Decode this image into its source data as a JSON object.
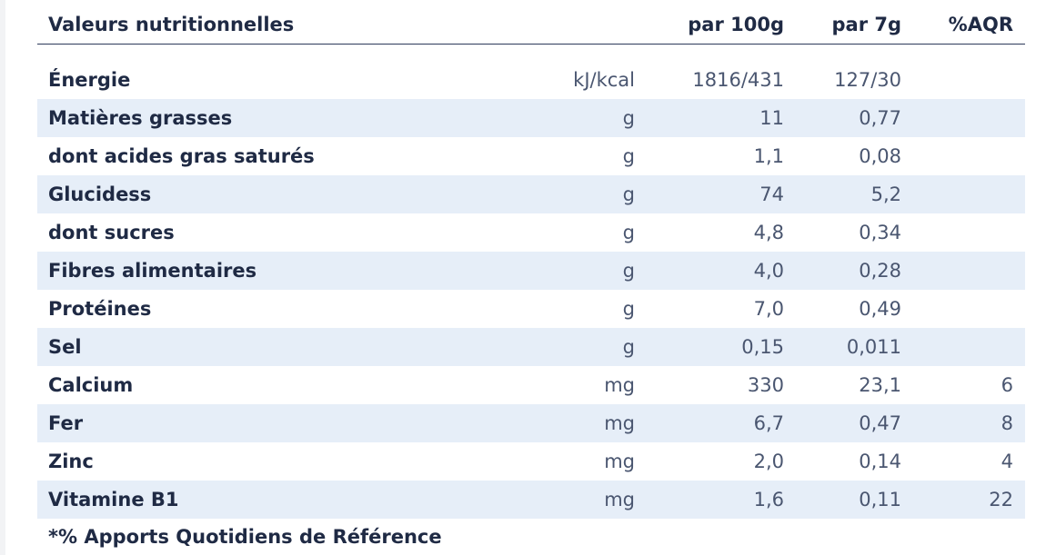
{
  "table": {
    "header": {
      "title": "Valeurs nutritionnelles",
      "per100": "par 100g",
      "per7": "par 7g",
      "aqr": "%AQR"
    },
    "rows": [
      {
        "name": "Énergie",
        "unit": "kJ/kcal",
        "per100": "1816/431",
        "per7": "127/30",
        "aqr": ""
      },
      {
        "name": "Matières grasses",
        "unit": "g",
        "per100": "11",
        "per7": "0,77",
        "aqr": ""
      },
      {
        "name": "dont acides gras saturés",
        "unit": "g",
        "per100": "1,1",
        "per7": "0,08",
        "aqr": ""
      },
      {
        "name": "Glucidess",
        "unit": "g",
        "per100": "74",
        "per7": "5,2",
        "aqr": ""
      },
      {
        "name": "dont sucres",
        "unit": "g",
        "per100": "4,8",
        "per7": "0,34",
        "aqr": ""
      },
      {
        "name": "Fibres alimentaires",
        "unit": "g",
        "per100": "4,0",
        "per7": "0,28",
        "aqr": ""
      },
      {
        "name": "Protéines",
        "unit": "g",
        "per100": "7,0",
        "per7": "0,49",
        "aqr": ""
      },
      {
        "name": "Sel",
        "unit": "g",
        "per100": "0,15",
        "per7": "0,011",
        "aqr": ""
      },
      {
        "name": "Calcium",
        "unit": "mg",
        "per100": "330",
        "per7": "23,1",
        "aqr": "6"
      },
      {
        "name": "Fer",
        "unit": "mg",
        "per100": "6,7",
        "per7": "0,47",
        "aqr": "8"
      },
      {
        "name": "Zinc",
        "unit": "mg",
        "per100": "2,0",
        "per7": "0,14",
        "aqr": "4"
      },
      {
        "name": "Vitamine B1",
        "unit": "mg",
        "per100": "1,6",
        "per7": "0,11",
        "aqr": "22"
      }
    ],
    "footnote": "*% Apports Quotidiens de Référence"
  },
  "colors": {
    "text": "#1f2a44",
    "shaded_row": "#e6eef8",
    "rule": "#2d3a5a"
  }
}
